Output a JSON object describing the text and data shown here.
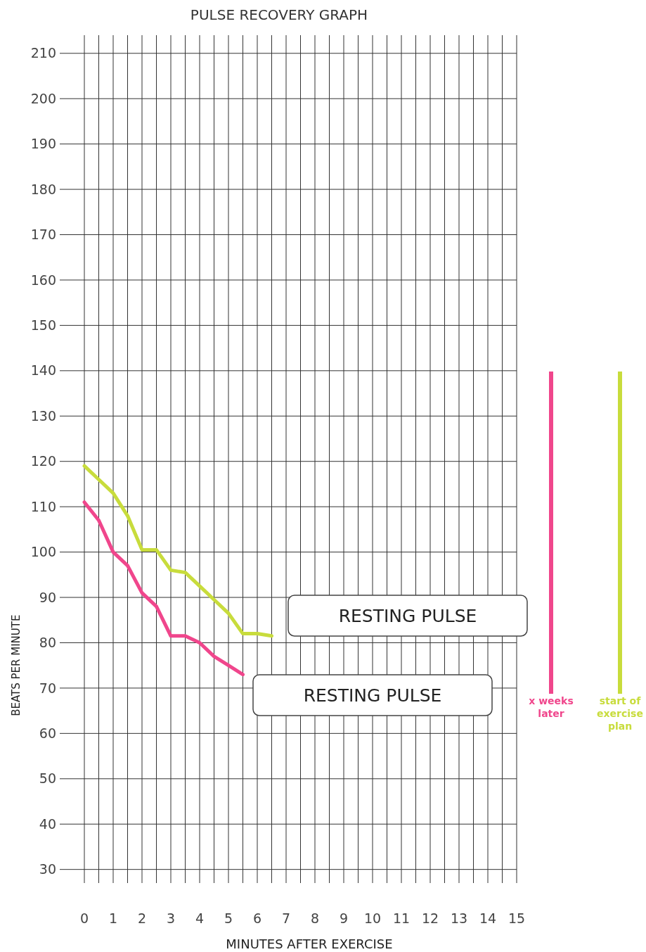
{
  "chart_data": {
    "type": "line",
    "title": "PULSE RECOVERY GRAPH",
    "xlabel": "MINUTES AFTER EXERCISE",
    "ylabel": "BEATS PER MINUTE",
    "series": [
      {
        "name": "x weeks later",
        "color": "#f0468c",
        "x": [
          0,
          0.5,
          1,
          1.5,
          2,
          2.5,
          3,
          3.5,
          4,
          4.5,
          5,
          5.5
        ],
        "values": [
          111,
          107,
          100,
          97,
          91,
          88,
          81.5,
          81.5,
          80,
          77,
          75,
          73
        ]
      },
      {
        "name": "start of exercise plan",
        "color": "#c8dc3c",
        "x": [
          0,
          0.5,
          1,
          1.5,
          2,
          2.5,
          3,
          3.5,
          4,
          4.5,
          5,
          5.5,
          6,
          6.5
        ],
        "values": [
          119,
          116,
          113,
          108,
          100.5,
          100.5,
          96,
          95.5,
          92.5,
          89.5,
          86.5,
          82,
          82,
          81.5
        ]
      }
    ],
    "annotations": [
      "RESTING PULSE",
      "RESTING PULSE"
    ],
    "xlim": [
      0,
      15
    ],
    "ylim": [
      27,
      214
    ],
    "xticks": [
      0,
      {
        "value": 0.5,
        "label": null
      },
      1,
      {
        "value": 1.5,
        "label": null
      },
      2,
      {
        "value": 2.5,
        "label": null
      },
      3,
      {
        "value": 3.5,
        "label": null
      },
      4,
      {
        "value": 4.5,
        "label": null
      },
      5,
      {
        "value": 5.5,
        "label": null
      },
      6,
      {
        "value": 6.5,
        "label": null
      },
      7,
      {
        "value": 7.5,
        "label": null
      },
      8,
      {
        "value": 8.5,
        "label": null
      },
      9,
      {
        "value": 9.5,
        "label": null
      },
      10,
      {
        "value": 10.5,
        "label": null
      },
      11,
      {
        "value": 11.5,
        "label": null
      },
      12,
      {
        "value": 12.5,
        "label": null
      },
      13,
      {
        "value": 13.5,
        "label": null
      },
      14,
      {
        "value": 14.5,
        "label": null
      },
      15
    ],
    "yticks": [
      30,
      40,
      50,
      60,
      70,
      80,
      90,
      100,
      110,
      120,
      130,
      140,
      150,
      160,
      170,
      180,
      190,
      200,
      210
    ],
    "grid": true,
    "legend": "right",
    "marker": "none",
    "line_style": "solid"
  }
}
